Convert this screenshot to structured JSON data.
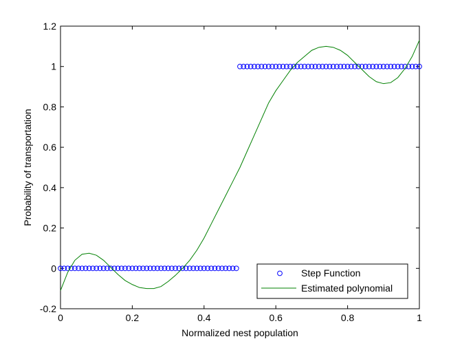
{
  "chart_data": {
    "type": "scatter",
    "title": "",
    "xlabel": "Normalized nest population",
    "ylabel": "Probability of transportation",
    "xlim": [
      0,
      1
    ],
    "ylim": [
      -0.2,
      1.2
    ],
    "x_ticks": [
      0,
      0.2,
      0.4,
      0.6,
      0.8,
      1
    ],
    "x_tick_labels": [
      "0",
      "0.2",
      "0.4",
      "0.6",
      "0.8",
      "1"
    ],
    "y_ticks": [
      -0.2,
      0,
      0.2,
      0.4,
      0.6,
      0.8,
      1,
      1.2
    ],
    "y_tick_labels": [
      "-0.2",
      "0",
      "0.2",
      "0.4",
      "0.6",
      "0.8",
      "1",
      "1.2"
    ],
    "grid": false,
    "legend_position": "bottom-right",
    "series": [
      {
        "name": "Step Function",
        "kind": "markers",
        "marker": "circle-open",
        "color": "#0000ff",
        "x": [
          0.0,
          0.01,
          0.02,
          0.03,
          0.04,
          0.05,
          0.06,
          0.07,
          0.08,
          0.09,
          0.1,
          0.11,
          0.12,
          0.13,
          0.14,
          0.15,
          0.16,
          0.17,
          0.18,
          0.19,
          0.2,
          0.21,
          0.22,
          0.23,
          0.24,
          0.25,
          0.26,
          0.27,
          0.28,
          0.29,
          0.3,
          0.31,
          0.32,
          0.33,
          0.34,
          0.35,
          0.36,
          0.37,
          0.38,
          0.39,
          0.4,
          0.41,
          0.42,
          0.43,
          0.44,
          0.45,
          0.46,
          0.47,
          0.48,
          0.49,
          0.5,
          0.51,
          0.52,
          0.53,
          0.54,
          0.55,
          0.56,
          0.57,
          0.58,
          0.59,
          0.6,
          0.61,
          0.62,
          0.63,
          0.64,
          0.65,
          0.66,
          0.67,
          0.68,
          0.69,
          0.7,
          0.71,
          0.72,
          0.73,
          0.74,
          0.75,
          0.76,
          0.77,
          0.78,
          0.79,
          0.8,
          0.81,
          0.82,
          0.83,
          0.84,
          0.85,
          0.86,
          0.87,
          0.88,
          0.89,
          0.9,
          0.91,
          0.92,
          0.93,
          0.94,
          0.95,
          0.96,
          0.97,
          0.98,
          0.99,
          1.0
        ],
        "y": [
          0,
          0,
          0,
          0,
          0,
          0,
          0,
          0,
          0,
          0,
          0,
          0,
          0,
          0,
          0,
          0,
          0,
          0,
          0,
          0,
          0,
          0,
          0,
          0,
          0,
          0,
          0,
          0,
          0,
          0,
          0,
          0,
          0,
          0,
          0,
          0,
          0,
          0,
          0,
          0,
          0,
          0,
          0,
          0,
          0,
          0,
          0,
          0,
          0,
          0,
          1,
          1,
          1,
          1,
          1,
          1,
          1,
          1,
          1,
          1,
          1,
          1,
          1,
          1,
          1,
          1,
          1,
          1,
          1,
          1,
          1,
          1,
          1,
          1,
          1,
          1,
          1,
          1,
          1,
          1,
          1,
          1,
          1,
          1,
          1,
          1,
          1,
          1,
          1,
          1,
          1,
          1,
          1,
          1,
          1,
          1,
          1,
          1,
          1,
          1,
          1
        ]
      },
      {
        "name": "Estimated polynomial",
        "kind": "line",
        "color": "#008000",
        "x": [
          0.0,
          0.02,
          0.04,
          0.06,
          0.08,
          0.1,
          0.12,
          0.14,
          0.16,
          0.18,
          0.2,
          0.22,
          0.24,
          0.26,
          0.28,
          0.3,
          0.32,
          0.34,
          0.36,
          0.38,
          0.4,
          0.42,
          0.44,
          0.46,
          0.48,
          0.5,
          0.52,
          0.54,
          0.56,
          0.58,
          0.6,
          0.62,
          0.64,
          0.66,
          0.68,
          0.7,
          0.72,
          0.74,
          0.76,
          0.78,
          0.8,
          0.82,
          0.84,
          0.86,
          0.88,
          0.9,
          0.92,
          0.94,
          0.96,
          0.98,
          1.0
        ],
        "y": [
          -0.11,
          -0.02,
          0.04,
          0.07,
          0.075,
          0.065,
          0.04,
          0.005,
          -0.03,
          -0.06,
          -0.08,
          -0.095,
          -0.1,
          -0.1,
          -0.09,
          -0.065,
          -0.035,
          0.0,
          0.04,
          0.09,
          0.15,
          0.22,
          0.29,
          0.36,
          0.43,
          0.5,
          0.58,
          0.66,
          0.74,
          0.82,
          0.88,
          0.93,
          0.98,
          1.02,
          1.05,
          1.08,
          1.095,
          1.1,
          1.095,
          1.08,
          1.055,
          1.02,
          0.985,
          0.95,
          0.925,
          0.915,
          0.92,
          0.945,
          0.99,
          1.05,
          1.13
        ]
      }
    ]
  }
}
